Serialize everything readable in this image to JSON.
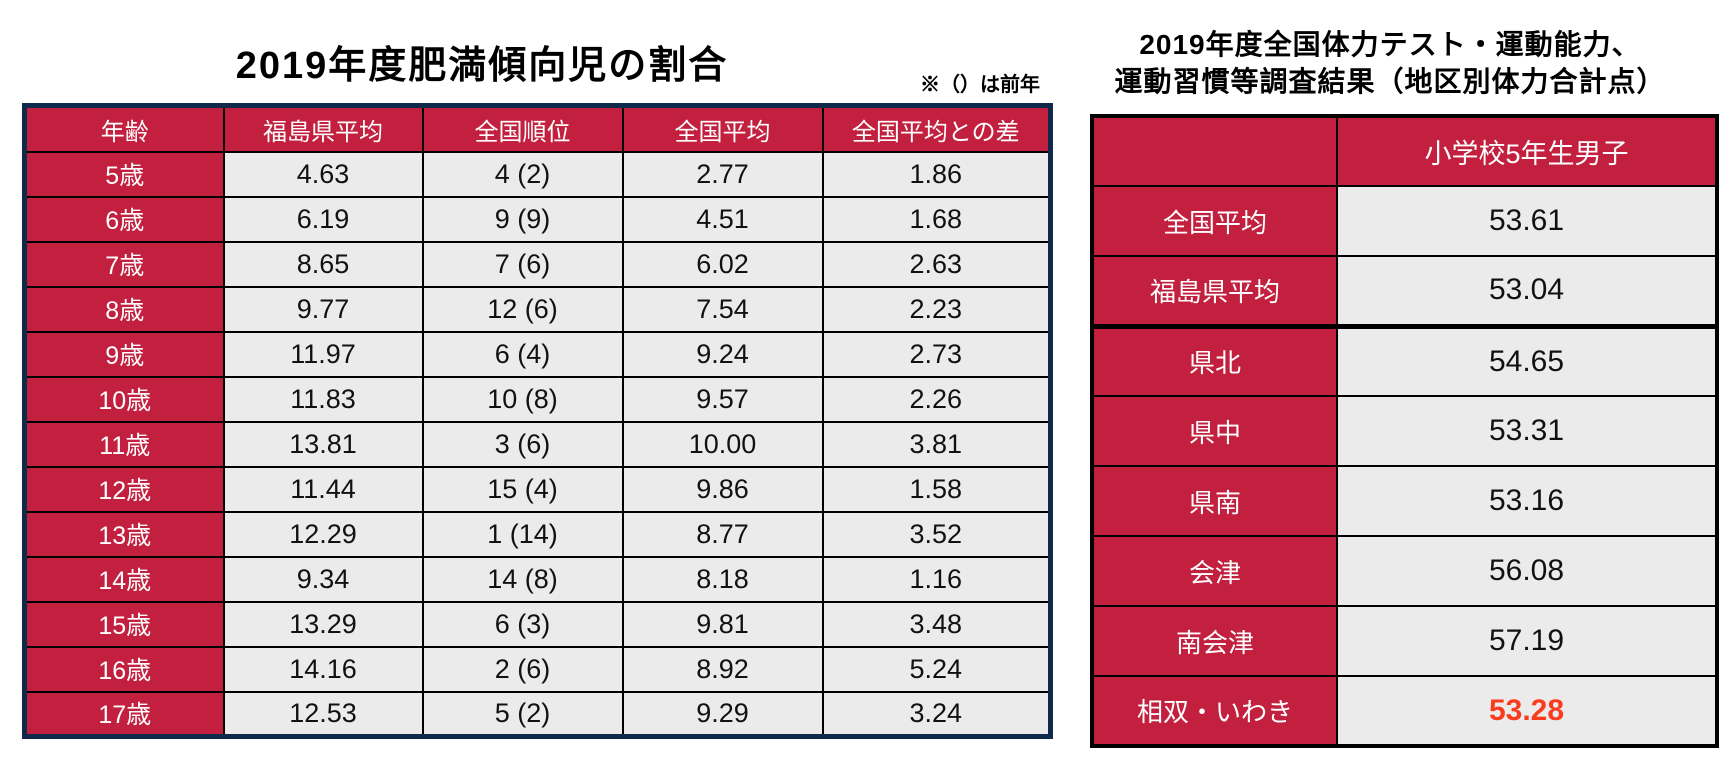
{
  "colors": {
    "red": "#c2203e",
    "navy": "#102a4c",
    "cell_gray": "#ebebeb",
    "highlight": "#fa3c1e",
    "border_black": "#000000",
    "header_text": "#ffffff"
  },
  "left_section": {
    "title": "2019年度肥満傾向児の割合",
    "note": "※（）は前年",
    "table": {
      "headers": [
        "年齢",
        "福島県平均",
        "全国順位",
        "全国平均",
        "全国平均との差"
      ],
      "rows": [
        {
          "age": "5歳",
          "pref_avg": "4.63",
          "rank": "4 (2)",
          "natl_avg": "2.77",
          "diff": "1.86"
        },
        {
          "age": "6歳",
          "pref_avg": "6.19",
          "rank": "9 (9)",
          "natl_avg": "4.51",
          "diff": "1.68"
        },
        {
          "age": "7歳",
          "pref_avg": "8.65",
          "rank": "7 (6)",
          "natl_avg": "6.02",
          "diff": "2.63"
        },
        {
          "age": "8歳",
          "pref_avg": "9.77",
          "rank": "12 (6)",
          "natl_avg": "7.54",
          "diff": "2.23"
        },
        {
          "age": "9歳",
          "pref_avg": "11.97",
          "rank": "6 (4)",
          "natl_avg": "9.24",
          "diff": "2.73"
        },
        {
          "age": "10歳",
          "pref_avg": "11.83",
          "rank": "10 (8)",
          "natl_avg": "9.57",
          "diff": "2.26"
        },
        {
          "age": "11歳",
          "pref_avg": "13.81",
          "rank": "3 (6)",
          "natl_avg": "10.00",
          "diff": "3.81"
        },
        {
          "age": "12歳",
          "pref_avg": "11.44",
          "rank": "15 (4)",
          "natl_avg": "9.86",
          "diff": "1.58"
        },
        {
          "age": "13歳",
          "pref_avg": "12.29",
          "rank": "1 (14)",
          "natl_avg": "8.77",
          "diff": "3.52"
        },
        {
          "age": "14歳",
          "pref_avg": "9.34",
          "rank": "14 (8)",
          "natl_avg": "8.18",
          "diff": "1.16"
        },
        {
          "age": "15歳",
          "pref_avg": "13.29",
          "rank": "6 (3)",
          "natl_avg": "9.81",
          "diff": "3.48"
        },
        {
          "age": "16歳",
          "pref_avg": "14.16",
          "rank": "2 (6)",
          "natl_avg": "8.92",
          "diff": "5.24"
        },
        {
          "age": "17歳",
          "pref_avg": "12.53",
          "rank": "5 (2)",
          "natl_avg": "9.29",
          "diff": "3.24"
        }
      ]
    }
  },
  "right_section": {
    "title_line1": "2019年度全国体力テスト・運動能力、",
    "title_line2": "運動習慣等調査結果（地区別体力合計点）",
    "table": {
      "column_header": "小学校5年生男子",
      "rows": [
        {
          "label": "全国平均",
          "value": "53.61",
          "highlight": false,
          "thick_below": false
        },
        {
          "label": "福島県平均",
          "value": "53.04",
          "highlight": false,
          "thick_below": true
        },
        {
          "label": "県北",
          "value": "54.65",
          "highlight": false,
          "thick_below": false
        },
        {
          "label": "県中",
          "value": "53.31",
          "highlight": false,
          "thick_below": false
        },
        {
          "label": "県南",
          "value": "53.16",
          "highlight": false,
          "thick_below": false
        },
        {
          "label": "会津",
          "value": "56.08",
          "highlight": false,
          "thick_below": false
        },
        {
          "label": "南会津",
          "value": "57.19",
          "highlight": false,
          "thick_below": false
        },
        {
          "label": "相双・いわき",
          "value": "53.28",
          "highlight": true,
          "thick_below": false
        }
      ]
    }
  },
  "chart_data": [
    {
      "type": "table",
      "title": "2019年度肥満傾向児の割合",
      "note": "※（）は前年",
      "columns": [
        "年齢",
        "福島県平均",
        "全国順位",
        "全国平均",
        "全国平均との差"
      ],
      "rows": [
        [
          "5歳",
          4.63,
          "4 (2)",
          2.77,
          1.86
        ],
        [
          "6歳",
          6.19,
          "9 (9)",
          4.51,
          1.68
        ],
        [
          "7歳",
          8.65,
          "7 (6)",
          6.02,
          2.63
        ],
        [
          "8歳",
          9.77,
          "12 (6)",
          7.54,
          2.23
        ],
        [
          "9歳",
          11.97,
          "6 (4)",
          9.24,
          2.73
        ],
        [
          "10歳",
          11.83,
          "10 (8)",
          9.57,
          2.26
        ],
        [
          "11歳",
          13.81,
          "3 (6)",
          10.0,
          3.81
        ],
        [
          "12歳",
          11.44,
          "15 (4)",
          9.86,
          1.58
        ],
        [
          "13歳",
          12.29,
          "1 (14)",
          8.77,
          3.52
        ],
        [
          "14歳",
          9.34,
          "14 (8)",
          8.18,
          1.16
        ],
        [
          "15歳",
          13.29,
          "6 (3)",
          9.81,
          3.48
        ],
        [
          "16歳",
          14.16,
          "2 (6)",
          8.92,
          5.24
        ],
        [
          "17歳",
          12.53,
          "5 (2)",
          9.29,
          3.24
        ]
      ]
    },
    {
      "type": "table",
      "title": "2019年度全国体力テスト・運動能力、運動習慣等調査結果（地区別体力合計点）",
      "columns": [
        "",
        "小学校5年生男子"
      ],
      "rows": [
        [
          "全国平均",
          53.61
        ],
        [
          "福島県平均",
          53.04
        ],
        [
          "県北",
          54.65
        ],
        [
          "県中",
          53.31
        ],
        [
          "県南",
          53.16
        ],
        [
          "会津",
          56.08
        ],
        [
          "南会津",
          57.19
        ],
        [
          "相双・いわき",
          53.28
        ]
      ],
      "highlighted_cell": {
        "row": "相双・いわき",
        "value": 53.28
      }
    }
  ]
}
